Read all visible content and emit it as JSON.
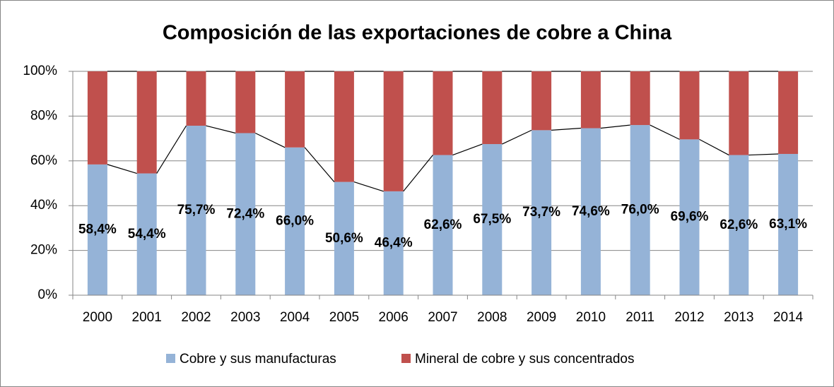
{
  "chart_data": {
    "type": "stacked_bar_100",
    "title": "Composición de las exportaciones de cobre a China",
    "categories": [
      "2000",
      "2001",
      "2002",
      "2003",
      "2004",
      "2005",
      "2006",
      "2007",
      "2008",
      "2009",
      "2010",
      "2011",
      "2012",
      "2013",
      "2014"
    ],
    "series": [
      {
        "name": "Cobre y sus manufacturas",
        "color": "#95b3d7",
        "values": [
          58.4,
          54.4,
          75.7,
          72.4,
          66.0,
          50.6,
          46.4,
          62.6,
          67.5,
          73.7,
          74.6,
          76.0,
          69.6,
          62.6,
          63.1
        ],
        "value_labels": [
          "58,4%",
          "54,4%",
          "75,7%",
          "72,4%",
          "66,0%",
          "50,6%",
          "46,4%",
          "62,6%",
          "67,5%",
          "73,7%",
          "74,6%",
          "76,0%",
          "69,6%",
          "62,6%",
          "63,1%"
        ]
      },
      {
        "name": "Mineral de cobre y sus concentrados",
        "color": "#c0504d",
        "values": [
          41.6,
          45.6,
          24.3,
          27.6,
          34.0,
          49.4,
          53.6,
          37.4,
          32.5,
          26.3,
          25.4,
          24.0,
          30.4,
          37.4,
          36.9
        ]
      }
    ],
    "ylim": [
      0,
      100
    ],
    "yticks": [
      {
        "value": 0,
        "label": "0%"
      },
      {
        "value": 20,
        "label": "20%"
      },
      {
        "value": 40,
        "label": "40%"
      },
      {
        "value": 60,
        "label": "60%"
      },
      {
        "value": 80,
        "label": "80%"
      },
      {
        "value": 100,
        "label": "100%"
      }
    ],
    "grid": true,
    "series_lines": true,
    "legend": "bottom"
  }
}
